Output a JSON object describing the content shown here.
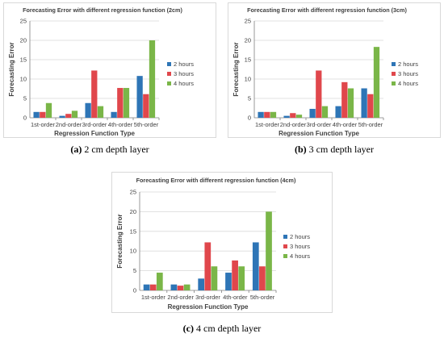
{
  "colors": {
    "2 hours": "#2e75b6",
    "3 hours": "#e0474c",
    "4 hours": "#7ab648",
    "grid": "#d9d9d9",
    "axis": "#7f7f7f"
  },
  "captions": [
    {
      "letter": "(a)",
      "text": " 2 cm depth layer"
    },
    {
      "letter": "(b)",
      "text": " 3 cm depth layer"
    },
    {
      "letter": "(c)",
      "text": " 4 cm depth layer"
    }
  ],
  "chart_data": [
    {
      "type": "bar",
      "title": "Forecasting Error with different regression function (2cm)",
      "xlabel": "Regression Function Type",
      "ylabel": "Forecasting Error",
      "ylim": [
        0,
        25
      ],
      "yticks": [
        "0",
        "5",
        "10",
        "15",
        "20",
        "25"
      ],
      "grid": true,
      "legend": "right",
      "categories": [
        "1st-order",
        "2nd-order",
        "3rd-order",
        "4th-order",
        "5th-order"
      ],
      "series": [
        {
          "name": "2 hours",
          "values": [
            1.5,
            0.5,
            3.8,
            1.5,
            10.8
          ]
        },
        {
          "name": "3 hours",
          "values": [
            1.5,
            1.0,
            12.2,
            7.7,
            6.1
          ]
        },
        {
          "name": "4 hours",
          "values": [
            3.8,
            1.8,
            3.0,
            7.7,
            20.0
          ]
        }
      ]
    },
    {
      "type": "bar",
      "title": "Forecasting Error with different regression function (3cm)",
      "xlabel": "Regression Function Type",
      "ylabel": "Forecasting Error",
      "ylim": [
        0,
        25
      ],
      "yticks": [
        "0",
        "5",
        "10",
        "15",
        "20",
        "25"
      ],
      "grid": true,
      "legend": "right",
      "categories": [
        "1st-order",
        "2nd-order",
        "3rd-order",
        "4th-order",
        "5th-order"
      ],
      "series": [
        {
          "name": "2 hours",
          "values": [
            1.5,
            0.5,
            2.3,
            3.0,
            7.6
          ]
        },
        {
          "name": "3 hours",
          "values": [
            1.5,
            1.2,
            12.2,
            9.2,
            6.1
          ]
        },
        {
          "name": "4 hours",
          "values": [
            1.5,
            0.8,
            3.0,
            7.6,
            18.3
          ]
        }
      ]
    },
    {
      "type": "bar",
      "title": "Forecasting Error with different regression function (4cm)",
      "xlabel": "Regression Function Type",
      "ylabel": "Forecasting Error",
      "ylim": [
        0,
        25
      ],
      "yticks": [
        "0",
        "5",
        "10",
        "15",
        "20",
        "25"
      ],
      "grid": true,
      "legend": "right",
      "categories": [
        "1st-order",
        "2nd-order",
        "3rd-order",
        "4th-order",
        "5th-order"
      ],
      "series": [
        {
          "name": "2 hours",
          "values": [
            1.5,
            1.5,
            3.0,
            4.5,
            12.2
          ]
        },
        {
          "name": "3 hours",
          "values": [
            1.5,
            1.2,
            12.2,
            7.6,
            6.1
          ]
        },
        {
          "name": "4 hours",
          "values": [
            4.5,
            1.5,
            6.1,
            6.1,
            20.0
          ]
        }
      ]
    }
  ]
}
